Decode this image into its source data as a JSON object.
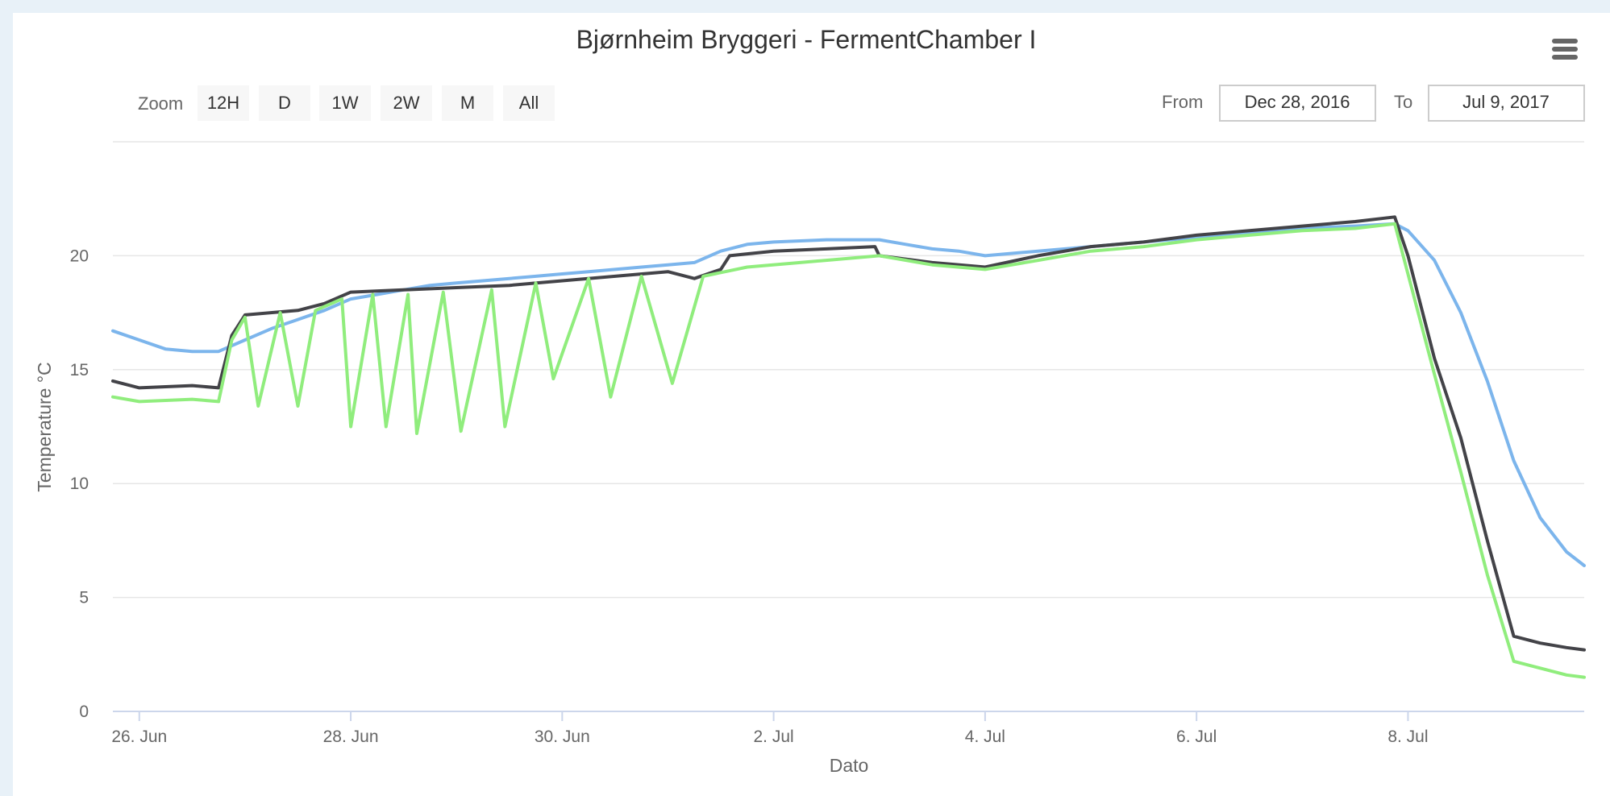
{
  "chart_data": {
    "type": "line",
    "title": "Bjørnheim Bryggeri - FermentChamber I",
    "xlabel": "Dato",
    "ylabel": "Temperature °C",
    "ylim": [
      0,
      25
    ],
    "yticks": [
      0,
      5,
      10,
      15,
      20
    ],
    "xlim": [
      "2017-06-25T18:00",
      "2017-07-09T16:00"
    ],
    "xticks": [
      {
        "date": "2017-06-26",
        "label": "26. Jun"
      },
      {
        "date": "2017-06-28",
        "label": "28. Jun"
      },
      {
        "date": "2017-06-30",
        "label": "30. Jun"
      },
      {
        "date": "2017-07-02",
        "label": "2. Jul"
      },
      {
        "date": "2017-07-04",
        "label": "4. Jul"
      },
      {
        "date": "2017-07-06",
        "label": "6. Jul"
      },
      {
        "date": "2017-07-08",
        "label": "8. Jul"
      }
    ],
    "grid": true,
    "legend": "none",
    "series": [
      {
        "color": "#7cb5ec",
        "points": [
          [
            "2017-06-25T18:00",
            16.7
          ],
          [
            "2017-06-26T00:00",
            16.3
          ],
          [
            "2017-06-26T06:00",
            15.9
          ],
          [
            "2017-06-26T12:00",
            15.8
          ],
          [
            "2017-06-26T18:00",
            15.8
          ],
          [
            "2017-06-27T00:00",
            16.3
          ],
          [
            "2017-06-27T06:00",
            16.8
          ],
          [
            "2017-06-27T12:00",
            17.2
          ],
          [
            "2017-06-27T18:00",
            17.6
          ],
          [
            "2017-06-28T00:00",
            18.1
          ],
          [
            "2017-06-28T06:00",
            18.3
          ],
          [
            "2017-06-28T12:00",
            18.5
          ],
          [
            "2017-06-28T18:00",
            18.7
          ],
          [
            "2017-06-29T00:00",
            18.8
          ],
          [
            "2017-06-29T06:00",
            18.9
          ],
          [
            "2017-06-29T12:00",
            19.0
          ],
          [
            "2017-06-29T18:00",
            19.1
          ],
          [
            "2017-06-30T00:00",
            19.2
          ],
          [
            "2017-06-30T06:00",
            19.3
          ],
          [
            "2017-06-30T12:00",
            19.4
          ],
          [
            "2017-06-30T18:00",
            19.5
          ],
          [
            "2017-07-01T00:00",
            19.6
          ],
          [
            "2017-07-01T06:00",
            19.7
          ],
          [
            "2017-07-01T12:00",
            20.2
          ],
          [
            "2017-07-01T18:00",
            20.5
          ],
          [
            "2017-07-02T00:00",
            20.6
          ],
          [
            "2017-07-02T12:00",
            20.7
          ],
          [
            "2017-07-03T00:00",
            20.7
          ],
          [
            "2017-07-03T06:00",
            20.5
          ],
          [
            "2017-07-03T12:00",
            20.3
          ],
          [
            "2017-07-03T18:00",
            20.2
          ],
          [
            "2017-07-04T00:00",
            20.0
          ],
          [
            "2017-07-04T12:00",
            20.2
          ],
          [
            "2017-07-05T00:00",
            20.4
          ],
          [
            "2017-07-05T12:00",
            20.6
          ],
          [
            "2017-07-06T00:00",
            20.8
          ],
          [
            "2017-07-06T12:00",
            21.0
          ],
          [
            "2017-07-07T00:00",
            21.2
          ],
          [
            "2017-07-07T12:00",
            21.3
          ],
          [
            "2017-07-07T21:00",
            21.4
          ],
          [
            "2017-07-08T00:00",
            21.1
          ],
          [
            "2017-07-08T06:00",
            19.8
          ],
          [
            "2017-07-08T12:00",
            17.5
          ],
          [
            "2017-07-08T18:00",
            14.5
          ],
          [
            "2017-07-09T00:00",
            11.0
          ],
          [
            "2017-07-09T06:00",
            8.5
          ],
          [
            "2017-07-09T12:00",
            7.0
          ],
          [
            "2017-07-09T16:00",
            6.4
          ]
        ]
      },
      {
        "color": "#434348",
        "points": [
          [
            "2017-06-25T18:00",
            14.5
          ],
          [
            "2017-06-26T00:00",
            14.2
          ],
          [
            "2017-06-26T12:00",
            14.3
          ],
          [
            "2017-06-26T18:00",
            14.2
          ],
          [
            "2017-06-26T21:00",
            16.5
          ],
          [
            "2017-06-27T00:00",
            17.4
          ],
          [
            "2017-06-27T12:00",
            17.6
          ],
          [
            "2017-06-27T18:00",
            17.9
          ],
          [
            "2017-06-28T00:00",
            18.4
          ],
          [
            "2017-06-28T12:00",
            18.5
          ],
          [
            "2017-06-29T00:00",
            18.6
          ],
          [
            "2017-06-29T12:00",
            18.7
          ],
          [
            "2017-06-30T00:00",
            18.9
          ],
          [
            "2017-06-30T12:00",
            19.1
          ],
          [
            "2017-07-01T00:00",
            19.3
          ],
          [
            "2017-07-01T06:00",
            19.0
          ],
          [
            "2017-07-01T12:00",
            19.4
          ],
          [
            "2017-07-01T14:00",
            20.0
          ],
          [
            "2017-07-02T00:00",
            20.2
          ],
          [
            "2017-07-02T12:00",
            20.3
          ],
          [
            "2017-07-02T23:00",
            20.4
          ],
          [
            "2017-07-03T00:00",
            20.0
          ],
          [
            "2017-07-03T12:00",
            19.7
          ],
          [
            "2017-07-04T00:00",
            19.5
          ],
          [
            "2017-07-04T12:00",
            20.0
          ],
          [
            "2017-07-05T00:00",
            20.4
          ],
          [
            "2017-07-05T12:00",
            20.6
          ],
          [
            "2017-07-06T00:00",
            20.9
          ],
          [
            "2017-07-06T12:00",
            21.1
          ],
          [
            "2017-07-07T00:00",
            21.3
          ],
          [
            "2017-07-07T12:00",
            21.5
          ],
          [
            "2017-07-07T21:00",
            21.7
          ],
          [
            "2017-07-08T00:00",
            20.0
          ],
          [
            "2017-07-08T06:00",
            15.5
          ],
          [
            "2017-07-08T12:00",
            12.0
          ],
          [
            "2017-07-08T18:00",
            7.5
          ],
          [
            "2017-07-09T00:00",
            3.3
          ],
          [
            "2017-07-09T06:00",
            3.0
          ],
          [
            "2017-07-09T12:00",
            2.8
          ],
          [
            "2017-07-09T16:00",
            2.7
          ]
        ]
      },
      {
        "color": "#90ed7d",
        "points": [
          [
            "2017-06-25T18:00",
            13.8
          ],
          [
            "2017-06-26T00:00",
            13.6
          ],
          [
            "2017-06-26T12:00",
            13.7
          ],
          [
            "2017-06-26T18:00",
            13.6
          ],
          [
            "2017-06-26T21:00",
            16.3
          ],
          [
            "2017-06-27T00:00",
            17.3
          ],
          [
            "2017-06-27T03:00",
            13.4
          ],
          [
            "2017-06-27T08:00",
            17.5
          ],
          [
            "2017-06-27T12:00",
            13.4
          ],
          [
            "2017-06-27T16:00",
            17.6
          ],
          [
            "2017-06-27T22:00",
            18.1
          ],
          [
            "2017-06-28T00:00",
            12.5
          ],
          [
            "2017-06-28T05:00",
            18.3
          ],
          [
            "2017-06-28T08:00",
            12.5
          ],
          [
            "2017-06-28T13:00",
            18.3
          ],
          [
            "2017-06-28T15:00",
            12.2
          ],
          [
            "2017-06-28T21:00",
            18.4
          ],
          [
            "2017-06-29T01:00",
            12.3
          ],
          [
            "2017-06-29T08:00",
            18.5
          ],
          [
            "2017-06-29T11:00",
            12.5
          ],
          [
            "2017-06-29T18:00",
            18.8
          ],
          [
            "2017-06-29T22:00",
            14.6
          ],
          [
            "2017-06-30T06:00",
            19.0
          ],
          [
            "2017-06-30T11:00",
            13.8
          ],
          [
            "2017-06-30T18:00",
            19.1
          ],
          [
            "2017-07-01T01:00",
            14.4
          ],
          [
            "2017-07-01T08:00",
            19.1
          ],
          [
            "2017-07-01T18:00",
            19.5
          ],
          [
            "2017-07-02T06:00",
            19.7
          ],
          [
            "2017-07-02T18:00",
            19.9
          ],
          [
            "2017-07-03T00:00",
            20.0
          ],
          [
            "2017-07-03T12:00",
            19.6
          ],
          [
            "2017-07-04T00:00",
            19.4
          ],
          [
            "2017-07-04T12:00",
            19.8
          ],
          [
            "2017-07-05T00:00",
            20.2
          ],
          [
            "2017-07-05T12:00",
            20.4
          ],
          [
            "2017-07-06T00:00",
            20.7
          ],
          [
            "2017-07-06T12:00",
            20.9
          ],
          [
            "2017-07-07T00:00",
            21.1
          ],
          [
            "2017-07-07T12:00",
            21.2
          ],
          [
            "2017-07-07T21:00",
            21.4
          ],
          [
            "2017-07-08T00:00",
            19.2
          ],
          [
            "2017-07-08T06:00",
            14.8
          ],
          [
            "2017-07-08T12:00",
            10.5
          ],
          [
            "2017-07-08T18:00",
            6.0
          ],
          [
            "2017-07-09T00:00",
            2.2
          ],
          [
            "2017-07-09T06:00",
            1.9
          ],
          [
            "2017-07-09T12:00",
            1.6
          ],
          [
            "2017-07-09T16:00",
            1.5
          ]
        ]
      }
    ]
  },
  "toolbar": {
    "zoom_label": "Zoom",
    "buttons": [
      "12H",
      "D",
      "1W",
      "2W",
      "M",
      "All"
    ],
    "from_label": "From",
    "from_value": "Dec 28, 2016",
    "to_label": "To",
    "to_value": "Jul 9, 2017"
  },
  "menu_icon": "hamburger-menu-icon"
}
